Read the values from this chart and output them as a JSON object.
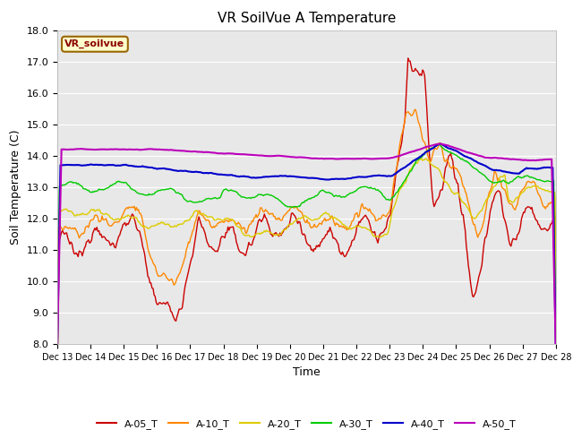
{
  "title": "VR SoilVue A Temperature",
  "xlabel": "Time",
  "ylabel": "Soil Temperature (C)",
  "ylim": [
    8.0,
    18.0
  ],
  "yticks": [
    8.0,
    9.0,
    10.0,
    11.0,
    12.0,
    13.0,
    14.0,
    15.0,
    16.0,
    17.0,
    18.0
  ],
  "series_colors": {
    "A-05_T": "#cc0000",
    "A-10_T": "#ff8800",
    "A-20_T": "#ddcc00",
    "A-30_T": "#00cc00",
    "A-40_T": "#0000cc",
    "A-50_T": "#bb00bb"
  },
  "legend_label": "VR_soilvue",
  "plot_bg": "#e8e8e8",
  "fig_bg": "#ffffff",
  "xtick_labels": [
    "Dec 13",
    "Dec 14",
    "Dec 15",
    "Dec 16",
    "Dec 17",
    "Dec 18",
    "Dec 19",
    "Dec 20",
    "Dec 21",
    "Dec 22",
    "Dec 23",
    "Dec 24",
    "Dec 25",
    "Dec 26",
    "Dec 27",
    "Dec 28"
  ],
  "num_points": 480
}
